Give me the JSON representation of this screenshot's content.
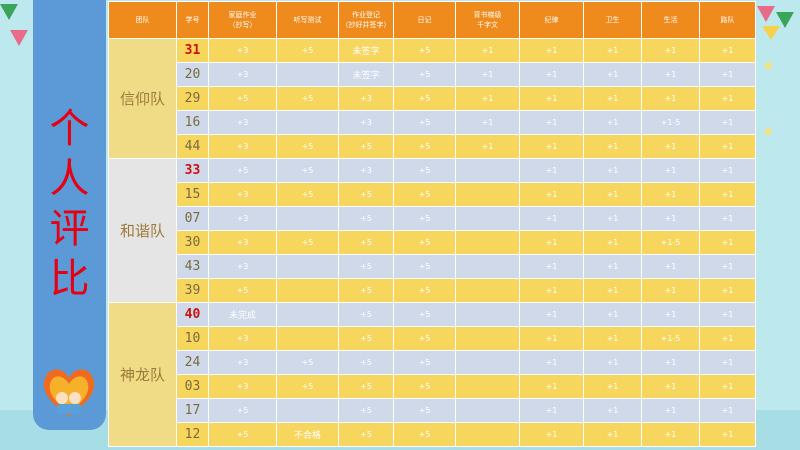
{
  "sidebar": {
    "title_chars": [
      "个",
      "人",
      "评",
      "比"
    ]
  },
  "table": {
    "headers": [
      {
        "line1": "团队",
        "line2": ""
      },
      {
        "line1": "学号",
        "line2": ""
      },
      {
        "line1": "家庭作业",
        "line2": "（抄写）"
      },
      {
        "line1": "听写测试",
        "line2": ""
      },
      {
        "line1": "作业登记",
        "line2": "（抄好并签字）"
      },
      {
        "line1": "日记",
        "line2": ""
      },
      {
        "line1": "背书梯级",
        "line2": "千字文"
      },
      {
        "line1": "纪律",
        "line2": ""
      },
      {
        "line1": "卫生",
        "line2": ""
      },
      {
        "line1": "生活",
        "line2": ""
      },
      {
        "line1": "路队",
        "line2": ""
      }
    ],
    "teams": [
      {
        "name": "信仰队",
        "rows": [
          {
            "id": "31",
            "red": true,
            "cells": [
              "+3",
              "+5",
              "未签字",
              "+5",
              "+1",
              "+1",
              "+1",
              "+1",
              "+1"
            ]
          },
          {
            "id": "20",
            "red": false,
            "cells": [
              "+3",
              "",
              "未签字",
              "+5",
              "+1",
              "+1",
              "+1",
              "+1",
              "+1"
            ]
          },
          {
            "id": "29",
            "red": false,
            "cells": [
              "+5",
              "+5",
              "+3",
              "+5",
              "+1",
              "+1",
              "+1",
              "+1",
              "+1"
            ]
          },
          {
            "id": "16",
            "red": false,
            "cells": [
              "+3",
              "",
              "+3",
              "+5",
              "+1",
              "+1",
              "+1",
              "+1-5",
              "+1"
            ]
          },
          {
            "id": "44",
            "red": false,
            "cells": [
              "+3",
              "+5",
              "+5",
              "+5",
              "+1",
              "+1",
              "+1",
              "+1",
              "+1"
            ]
          }
        ]
      },
      {
        "name": "和谐队",
        "rows": [
          {
            "id": "33",
            "red": true,
            "cells": [
              "+5",
              "+5",
              "+3",
              "+5",
              "",
              "+1",
              "+1",
              "+1",
              "+1"
            ]
          },
          {
            "id": "15",
            "red": false,
            "cells": [
              "+3",
              "+5",
              "+5",
              "+5",
              "",
              "+1",
              "+1",
              "+1",
              "+1"
            ]
          },
          {
            "id": "07",
            "red": false,
            "cells": [
              "+3",
              "",
              "+5",
              "+5",
              "",
              "+1",
              "+1",
              "+1",
              "+1"
            ]
          },
          {
            "id": "30",
            "red": false,
            "cells": [
              "+3",
              "+5",
              "+5",
              "+5",
              "",
              "+1",
              "+1",
              "+1-5",
              "+1"
            ]
          },
          {
            "id": "43",
            "red": false,
            "cells": [
              "+3",
              "",
              "+5",
              "+5",
              "",
              "+1",
              "+1",
              "+1",
              "+1"
            ]
          },
          {
            "id": "39",
            "red": false,
            "cells": [
              "+5",
              "",
              "+5",
              "+5",
              "",
              "+1",
              "+1",
              "+1",
              "+1"
            ]
          }
        ]
      },
      {
        "name": "神龙队",
        "rows": [
          {
            "id": "40",
            "red": true,
            "cells": [
              "未完成",
              "",
              "+5",
              "+5",
              "",
              "+1",
              "+1",
              "+1",
              "+1"
            ]
          },
          {
            "id": "10",
            "red": false,
            "cells": [
              "+3",
              "",
              "+5",
              "+5",
              "",
              "+1",
              "+1",
              "+1-5",
              "+1"
            ]
          },
          {
            "id": "24",
            "red": false,
            "cells": [
              "+3",
              "+5",
              "+5",
              "+5",
              "",
              "+1",
              "+1",
              "+1",
              "+1"
            ]
          },
          {
            "id": "03",
            "red": false,
            "cells": [
              "+3",
              "+5",
              "+5",
              "+5",
              "",
              "+1",
              "+1",
              "+1",
              "+1"
            ]
          },
          {
            "id": "17",
            "red": false,
            "cells": [
              "+5",
              "",
              "+5",
              "+5",
              "",
              "+1",
              "+1",
              "+1",
              "+1"
            ]
          },
          {
            "id": "12",
            "red": false,
            "cells": [
              "+5",
              "不合格",
              "+5",
              "+5",
              "",
              "+1",
              "+1",
              "+1",
              "+1"
            ]
          }
        ]
      }
    ]
  }
}
